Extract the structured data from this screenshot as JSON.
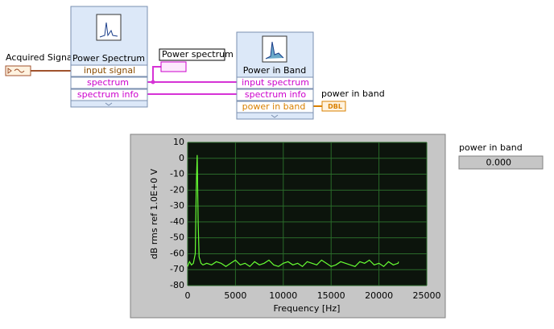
{
  "diagram": {
    "acquired_signal": "Acquired Signal",
    "power_spectrum_node": {
      "title": "Power Spectrum",
      "terminals": [
        "input signal",
        "spectrum",
        "spectrum info"
      ]
    },
    "power_in_band_node": {
      "title": "Power in Band",
      "terminals": [
        "input spectrum",
        "spectrum info",
        "power in band"
      ]
    },
    "spectrum_indicator": "Power spectrum",
    "power_in_band_indicator": "power in band",
    "dbl_label": "DBL"
  },
  "indicator": {
    "label": "power in band",
    "value": "0.000"
  },
  "chart_data": {
    "type": "line",
    "xlabel": "Frequency [Hz]",
    "ylabel": "dB rms ref 1.0E+0 V",
    "x": [
      0,
      200,
      400,
      600,
      800,
      900,
      1000,
      1100,
      1200,
      1400,
      1600,
      2000,
      2500,
      3000,
      3500,
      4000,
      4500,
      5000,
      5500,
      6000,
      6500,
      7000,
      7500,
      8000,
      8500,
      9000,
      9500,
      10000,
      10500,
      11000,
      11500,
      12000,
      12500,
      13000,
      13500,
      14000,
      14500,
      15000,
      15500,
      16000,
      16500,
      17000,
      17500,
      18000,
      18500,
      19000,
      19500,
      20000,
      20500,
      21000,
      21500,
      22000,
      22050
    ],
    "series": [
      {
        "color": "#66ff33",
        "values": [
          -68,
          -65,
          -67,
          -66,
          -60,
          -20,
          2,
          -40,
          -62,
          -66,
          -67,
          -66,
          -67,
          -65,
          -66,
          -68,
          -66,
          -64,
          -67,
          -66,
          -68,
          -65,
          -67,
          -66,
          -64,
          -67,
          -68,
          -66,
          -65,
          -67,
          -66,
          -68,
          -65,
          -66,
          -67,
          -64,
          -66,
          -68,
          -67,
          -65,
          -66,
          -67,
          -68,
          -65,
          -66,
          -64,
          -67,
          -66,
          -68,
          -65,
          -67,
          -66,
          -65
        ]
      }
    ],
    "xlim": [
      0,
      25000
    ],
    "xticks": [
      0,
      5000,
      10000,
      15000,
      20000,
      25000
    ],
    "ylim": [
      -80,
      10
    ],
    "yticks": [
      -80,
      -70,
      -60,
      -50,
      -40,
      -30,
      -20,
      -10,
      0,
      10
    ],
    "grid": true
  }
}
